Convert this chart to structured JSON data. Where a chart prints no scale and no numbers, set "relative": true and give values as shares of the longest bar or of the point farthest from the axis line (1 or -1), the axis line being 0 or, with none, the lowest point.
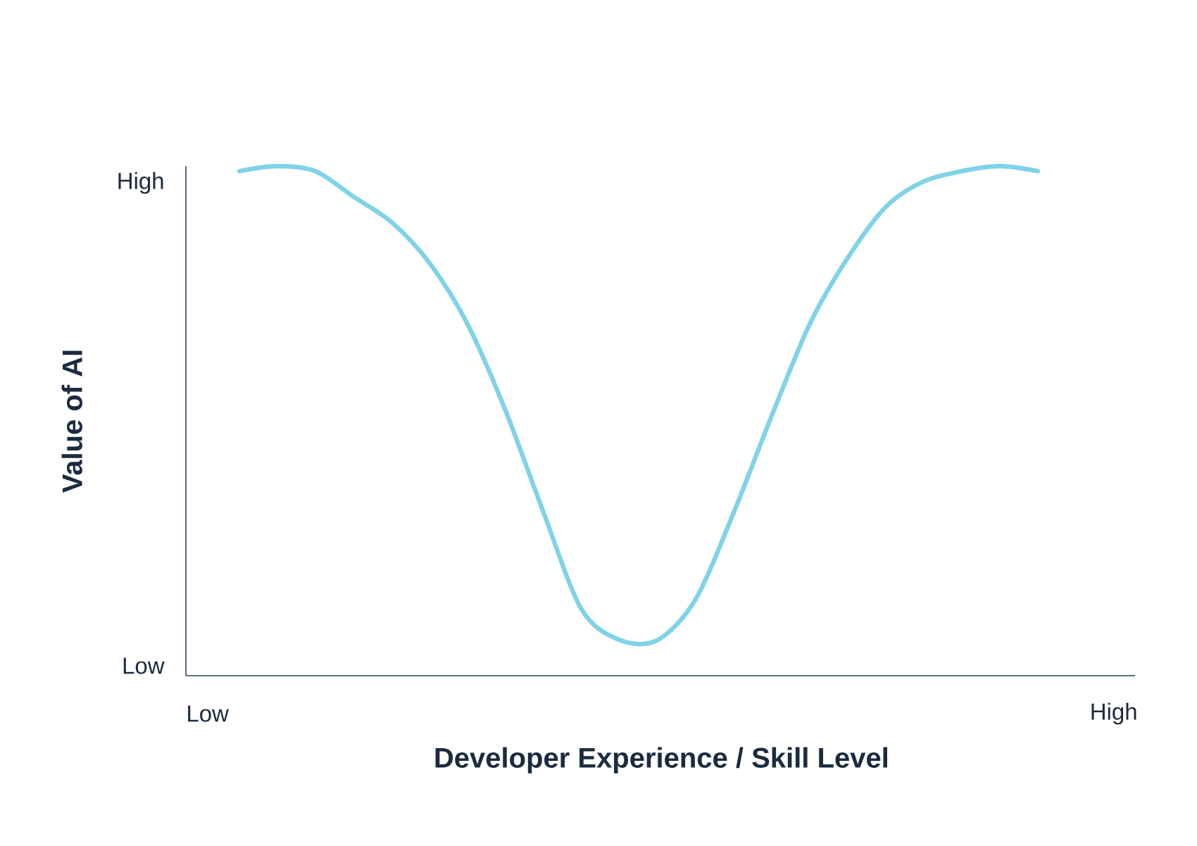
{
  "chart_data": {
    "type": "line",
    "relative": true,
    "xlabel": "Developer Experience / Skill Level",
    "ylabel": "Value of AI",
    "annotations": [
      "High",
      "Low",
      "Low",
      "High"
    ],
    "categories": [
      null,
      null,
      null,
      null,
      null,
      null,
      null,
      null,
      null,
      null,
      null,
      null,
      null,
      null,
      null,
      null,
      null,
      null,
      null,
      null,
      null,
      null
    ],
    "series": [
      {
        "color": "#7fd3e8",
        "values": [
          0.99,
          1,
          0.99,
          0.94,
          0.89,
          0.81,
          0.69,
          0.52,
          0.32,
          0.13,
          0.07,
          0.07,
          0.15,
          0.32,
          0.51,
          0.69,
          0.82,
          0.92,
          0.97,
          0.99,
          1,
          0.99
        ]
      }
    ],
    "marker": "none",
    "line_style": "solid"
  }
}
